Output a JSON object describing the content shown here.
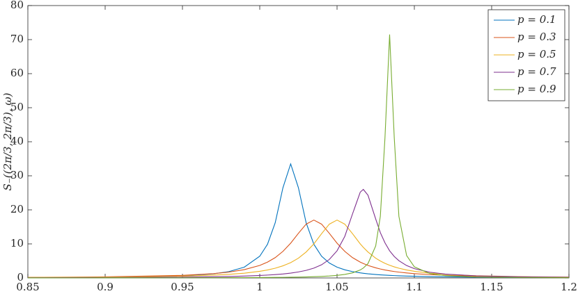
{
  "chart_data": {
    "type": "line",
    "ylabel": "S₋((2π/3, 2π/3), ω)",
    "x": [
      0.85,
      0.9,
      0.95,
      0.97,
      0.98,
      0.99,
      1.0,
      1.005,
      1.01,
      1.015,
      1.02,
      1.025,
      1.03,
      1.035,
      1.04,
      1.045,
      1.05,
      1.055,
      1.06,
      1.065,
      1.067,
      1.07,
      1.075,
      1.078,
      1.081,
      1.084,
      1.087,
      1.09,
      1.095,
      1.1,
      1.11,
      1.12,
      1.14,
      1.17,
      1.2
    ],
    "series": [
      {
        "name": "p = 0.1",
        "color": "#0072BD",
        "values": [
          0.11,
          0.22,
          0.63,
          1.21,
          1.86,
          3.17,
          6.38,
          9.88,
          16.2,
          26.5,
          33.5,
          26.5,
          16.2,
          9.88,
          6.38,
          4.38,
          3.17,
          2.39,
          1.86,
          1.49,
          1.37,
          1.21,
          1.01,
          0.91,
          0.83,
          0.75,
          0.69,
          0.63,
          0.55,
          0.49,
          0.38,
          0.31,
          0.22,
          0.14,
          0.1
        ]
      },
      {
        "name": "p = 0.3",
        "color": "#D95319",
        "values": [
          0.17,
          0.31,
          0.76,
          1.26,
          1.71,
          2.44,
          3.68,
          4.64,
          5.97,
          7.8,
          10.2,
          13.1,
          15.8,
          17,
          15.8,
          13.1,
          10.2,
          7.8,
          5.97,
          4.64,
          4.23,
          3.68,
          2.97,
          2.63,
          2.34,
          2.1,
          1.89,
          1.71,
          1.47,
          1.26,
          0.97,
          0.76,
          0.51,
          0.31,
          0.21
        ]
      },
      {
        "name": "p = 0.5",
        "color": "#EDB120",
        "values": [
          0.14,
          0.24,
          0.53,
          0.82,
          1.06,
          1.4,
          1.95,
          2.34,
          2.86,
          3.56,
          4.5,
          5.8,
          7.62,
          10,
          13,
          15.8,
          17,
          15.8,
          13,
          10,
          8.98,
          7.62,
          5.8,
          4.97,
          4.28,
          3.72,
          3.25,
          2.86,
          2.34,
          1.95,
          1.4,
          1.06,
          0.65,
          0.37,
          0.24
        ]
      },
      {
        "name": "p = 0.7",
        "color": "#7E2F8E",
        "values": [
          0.07,
          0.12,
          0.24,
          0.35,
          0.43,
          0.55,
          0.72,
          0.84,
          0.98,
          1.17,
          1.42,
          1.76,
          2.22,
          2.88,
          3.87,
          5.43,
          7.97,
          12.2,
          18.8,
          25.2,
          26,
          24.3,
          17.3,
          13.3,
          10.3,
          7.97,
          6.3,
          5.06,
          3.64,
          2.73,
          1.68,
          1.13,
          0.61,
          0.31,
          0.19
        ]
      },
      {
        "name": "p = 0.9",
        "color": "#77AC30",
        "values": [
          0.02,
          0.03,
          0.05,
          0.07,
          0.08,
          0.1,
          0.12,
          0.14,
          0.16,
          0.18,
          0.21,
          0.25,
          0.3,
          0.36,
          0.45,
          0.57,
          0.75,
          1.03,
          1.49,
          2.34,
          2.91,
          4.21,
          9.4,
          18.1,
          41.2,
          71.5,
          41.2,
          18.1,
          6.57,
          3.26,
          1.27,
          0.67,
          0.28,
          0.12,
          0.07
        ]
      }
    ],
    "xlim": [
      0.85,
      1.2
    ],
    "xticks": [
      0.85,
      0.9,
      0.95,
      1,
      1.05,
      1.1,
      1.15,
      1.2
    ],
    "ylim": [
      0,
      80
    ],
    "yticks": [
      0,
      10,
      20,
      30,
      40,
      50,
      60,
      70,
      80
    ],
    "legend": "northeast"
  }
}
